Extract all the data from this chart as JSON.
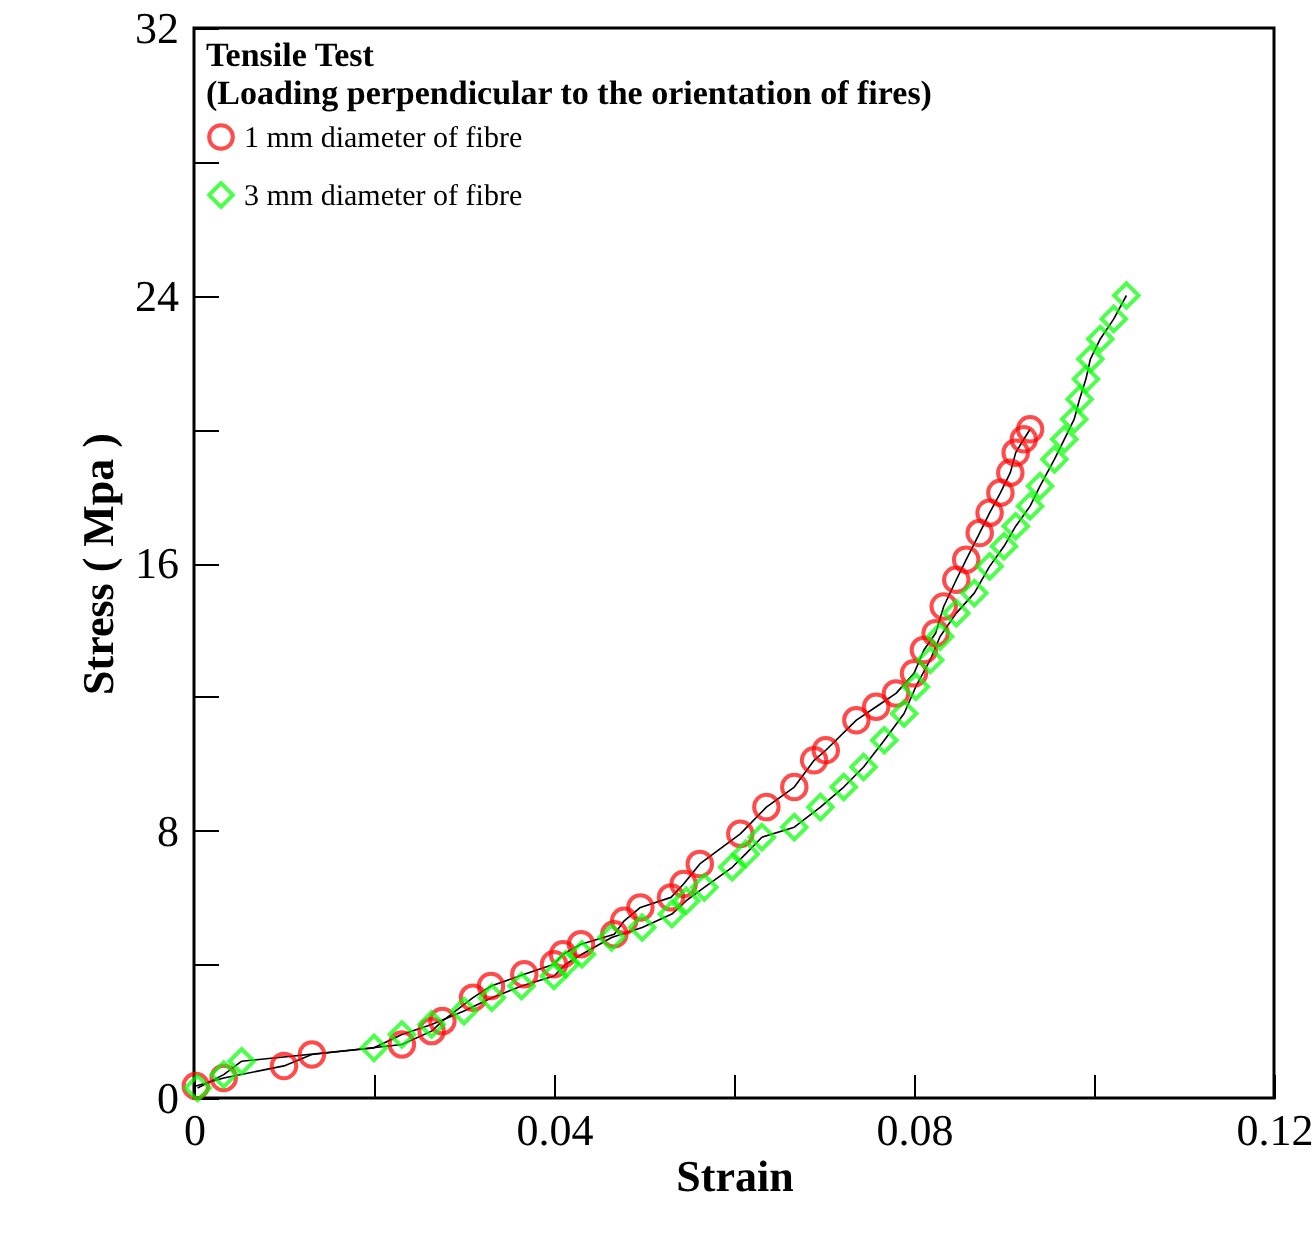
{
  "chart_data": {
    "type": "line",
    "xlabel": "Strain",
    "ylabel": "Stress ( Mpa )",
    "legend_title": "Tensile Test\n(Loading perpendicular to the orientation of fires)",
    "legend": "top left",
    "grid": false,
    "line_style": "solid",
    "xlim": [
      0,
      0.12
    ],
    "xticks": [
      0,
      {
        "value": 0.02,
        "label": null
      },
      0.04,
      {
        "value": 0.06,
        "label": null
      },
      0.08,
      {
        "value": 0.1,
        "label": null
      },
      0.12
    ],
    "ylim": [
      0,
      32
    ],
    "yticks": [
      0,
      {
        "value": 4,
        "label": null
      },
      8,
      {
        "value": 12,
        "label": null
      },
      16,
      {
        "value": 20,
        "label": null
      },
      24,
      {
        "value": 28,
        "label": null
      },
      32
    ],
    "series": [
      {
        "name": "1 mm diameter of fibre",
        "color": "#ff0000",
        "marker": "circle",
        "x": [
          0.0002,
          0.0033,
          0.01,
          0.0131,
          0.0231,
          0.0264,
          0.0276,
          0.031,
          0.033,
          0.0367,
          0.04,
          0.041,
          0.043,
          0.0467,
          0.0478,
          0.0496,
          0.053,
          0.0544,
          0.0562,
          0.0607,
          0.0636,
          0.0667,
          0.0689,
          0.0702,
          0.0736,
          0.0758,
          0.078,
          0.08,
          0.0811,
          0.0824,
          0.0833,
          0.0847,
          0.0858,
          0.0873,
          0.0884,
          0.0896,
          0.0907,
          0.0913,
          0.0922,
          0.0929
        ],
        "values": [
          0.36,
          0.6,
          0.96,
          1.3,
          1.6,
          2.0,
          2.3,
          3.0,
          3.35,
          3.7,
          4.0,
          4.3,
          4.6,
          4.9,
          5.3,
          5.7,
          6.0,
          6.4,
          7.0,
          7.9,
          8.7,
          9.3,
          10.1,
          10.4,
          11.3,
          11.7,
          12.1,
          12.7,
          13.4,
          13.9,
          14.7,
          15.5,
          16.1,
          16.9,
          17.5,
          18.1,
          18.7,
          19.3,
          19.7,
          20.0
        ]
      },
      {
        "name": "3 mm diameter of fibre",
        "color": "#00ff00",
        "marker": "diamond",
        "x": [
          0.0004,
          0.0033,
          0.0053,
          0.02,
          0.0231,
          0.0264,
          0.03,
          0.0331,
          0.0364,
          0.04,
          0.0413,
          0.0431,
          0.0464,
          0.0498,
          0.0531,
          0.0547,
          0.0567,
          0.0598,
          0.0613,
          0.0631,
          0.0667,
          0.0696,
          0.0722,
          0.0744,
          0.0767,
          0.0789,
          0.0802,
          0.0818,
          0.0829,
          0.0847,
          0.0867,
          0.0884,
          0.09,
          0.0913,
          0.0929,
          0.094,
          0.0956,
          0.0967,
          0.0978,
          0.0984,
          0.0991,
          0.0996,
          0.1007,
          0.1022,
          0.1036
        ],
        "values": [
          0.3,
          0.7,
          1.1,
          1.5,
          1.9,
          2.2,
          2.6,
          3.0,
          3.35,
          3.65,
          4.0,
          4.3,
          4.8,
          5.1,
          5.5,
          5.9,
          6.3,
          6.9,
          7.3,
          7.8,
          8.1,
          8.7,
          9.3,
          9.9,
          10.7,
          11.5,
          12.3,
          13.1,
          13.8,
          14.5,
          15.1,
          15.9,
          16.5,
          17.1,
          17.7,
          18.3,
          19.1,
          19.7,
          20.3,
          20.9,
          21.5,
          22.1,
          22.7,
          23.3,
          24.0
        ]
      }
    ]
  }
}
